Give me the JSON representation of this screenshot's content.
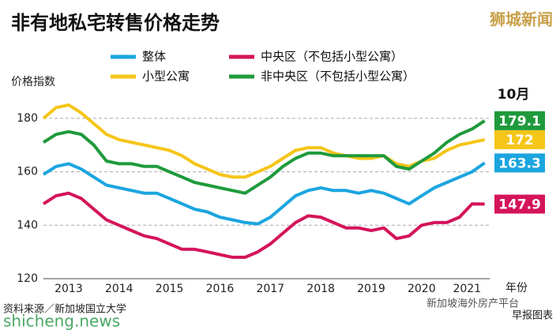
{
  "chart_data": {
    "type": "line",
    "title": "非有地私宅转售价格走势",
    "brand": "狮城新闻",
    "y_label": "价格指数",
    "x_label": "年份",
    "end_label": "10月",
    "source": "资料来源／新加坡国立大学",
    "credit": "早报图表",
    "watermark": "shicheng.news",
    "footer": "新加坡海外房产平台",
    "x": [
      2013,
      2013.25,
      2013.5,
      2013.75,
      2014,
      2014.25,
      2014.5,
      2014.75,
      2015,
      2015.25,
      2015.5,
      2015.75,
      2016,
      2016.25,
      2016.5,
      2016.75,
      2017,
      2017.25,
      2017.5,
      2017.75,
      2018,
      2018.25,
      2018.5,
      2018.75,
      2019,
      2019.25,
      2019.5,
      2019.75,
      2020,
      2020.25,
      2020.5,
      2020.75,
      2021,
      2021.25,
      2021.5,
      2021.75
    ],
    "xlim": [
      2013,
      2021.85
    ],
    "xticks": [
      {
        "value": 2013.5,
        "label": "2013"
      },
      {
        "value": 2014.5,
        "label": "2014"
      },
      {
        "value": 2015.5,
        "label": "2015"
      },
      {
        "value": 2016.5,
        "label": "2016"
      },
      {
        "value": 2017.5,
        "label": "2017"
      },
      {
        "value": 2018.5,
        "label": "2018"
      },
      {
        "value": 2019.5,
        "label": "2019"
      },
      {
        "value": 2020.5,
        "label": "2020"
      },
      {
        "value": 2021.4,
        "label": "2021"
      }
    ],
    "ylim": [
      120,
      190
    ],
    "yticks": [
      120,
      140,
      160,
      180
    ],
    "grid": true,
    "series": [
      {
        "name": "整体",
        "color": "#1ba5df",
        "values": [
          159,
          162,
          163,
          161,
          158,
          155,
          154,
          153,
          152,
          152,
          150,
          148,
          146,
          145,
          143,
          142,
          141,
          140.5,
          143,
          147,
          151,
          153,
          154,
          153,
          153,
          152,
          153,
          152,
          150,
          148,
          151,
          154,
          156,
          158,
          160,
          163.3
        ]
      },
      {
        "name": "中央区（不包括小型公寓）",
        "color": "#d4145a",
        "values": [
          148,
          151,
          152,
          150,
          146,
          142,
          140,
          138,
          136,
          135,
          133,
          131,
          131,
          130,
          129,
          128,
          128,
          130,
          133,
          137,
          141,
          143.5,
          143,
          141,
          139,
          139,
          138,
          139,
          135,
          136,
          140,
          141,
          141,
          143,
          148,
          147.9
        ]
      },
      {
        "name": "小型公寓",
        "color": "#f5c518",
        "values": [
          180,
          184,
          185,
          182,
          178,
          174,
          172,
          171,
          170,
          169,
          168,
          166,
          163,
          161,
          159,
          158,
          158,
          160,
          162,
          165,
          168,
          169,
          169,
          167,
          166,
          165,
          165,
          166,
          163,
          162,
          164,
          165,
          168,
          170,
          171,
          172.0
        ]
      },
      {
        "name": "非中央区（不包括小型公寓）",
        "color": "#1f9a3c",
        "values": [
          171,
          174,
          175,
          174,
          170,
          164,
          163,
          163,
          162,
          162,
          160,
          158,
          156,
          155,
          154,
          153,
          152,
          155,
          158,
          162,
          165,
          167,
          167,
          166,
          166,
          166,
          166,
          166,
          162,
          161,
          164,
          167,
          171,
          174,
          176,
          179.1
        ]
      }
    ]
  }
}
